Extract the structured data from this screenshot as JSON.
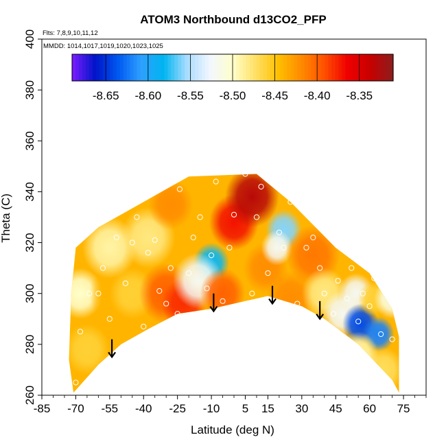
{
  "chart_data": {
    "type": "heatmap",
    "title": "ATOM3 Northbound d13CO2_PFP",
    "annotations": {
      "flights": "Flts: 7,8,9,10,11,12",
      "dates": "MMDD: 1014,1017,1019,1020,1023,1025"
    },
    "xlabel": "Latitude (deg N)",
    "ylabel": "Theta (C)",
    "xlim": [
      -85,
      85
    ],
    "ylim": [
      260,
      400
    ],
    "x_tick_labels": [
      "-85",
      "-70",
      "-55",
      "-40",
      "-25",
      "-10",
      "5",
      "15",
      "30",
      "45",
      "60",
      "75"
    ],
    "x_tick_values": [
      -85,
      -70,
      -55,
      -40,
      -25,
      -10,
      5,
      15,
      30,
      45,
      60,
      75
    ],
    "y_tick_labels": [
      "260",
      "280",
      "300",
      "320",
      "340",
      "360",
      "380",
      "400"
    ],
    "y_tick_values": [
      260,
      280,
      300,
      320,
      340,
      360,
      380,
      400
    ],
    "colorbar": {
      "range": [
        -8.69,
        -8.31
      ],
      "tick_labels": [
        "-8.65",
        "-8.60",
        "-8.55",
        "-8.50",
        "-8.45",
        "-8.40",
        "-8.35"
      ],
      "tick_values": [
        -8.65,
        -8.6,
        -8.55,
        -8.5,
        -8.45,
        -8.4,
        -8.35
      ],
      "colors": [
        "#7d1dff",
        "#0014c8",
        "#0058f0",
        "#2ea0ff",
        "#00b4f0",
        "#a8dcff",
        "#f2f6ff",
        "#ffffcc",
        "#ffe066",
        "#ffc000",
        "#ff8a00",
        "#ff5000",
        "#f00000",
        "#c80000",
        "#8c1e1e"
      ]
    },
    "domain_outline": [
      [
        -73,
        274
      ],
      [
        -72,
        300
      ],
      [
        -70,
        318
      ],
      [
        -60,
        326
      ],
      [
        -48,
        332
      ],
      [
        -30,
        341
      ],
      [
        -20,
        346
      ],
      [
        10,
        347
      ],
      [
        25,
        336
      ],
      [
        45,
        318
      ],
      [
        60,
        308
      ],
      [
        70,
        294
      ],
      [
        73,
        283
      ],
      [
        73,
        261
      ],
      [
        70,
        266
      ],
      [
        55,
        280
      ],
      [
        40,
        290
      ],
      [
        30,
        295
      ],
      [
        15,
        299
      ],
      [
        0,
        296
      ],
      [
        -10,
        294
      ],
      [
        -25,
        292
      ],
      [
        -38,
        286
      ],
      [
        -50,
        280
      ],
      [
        -60,
        272
      ],
      [
        -68,
        264
      ],
      [
        -71,
        261
      ]
    ],
    "blobs": [
      {
        "lat": -68,
        "theta": 300,
        "value": -8.5,
        "radius": 10
      },
      {
        "lat": -65,
        "theta": 278,
        "value": -8.46,
        "radius": 10
      },
      {
        "lat": -52,
        "theta": 300,
        "value": -8.44,
        "radius": 12
      },
      {
        "lat": -45,
        "theta": 300,
        "value": -8.46,
        "radius": 10
      },
      {
        "lat": -55,
        "theta": 318,
        "value": -8.49,
        "radius": 12
      },
      {
        "lat": -38,
        "theta": 322,
        "value": -8.48,
        "radius": 12
      },
      {
        "lat": -30,
        "theta": 300,
        "value": -8.4,
        "radius": 12
      },
      {
        "lat": -22,
        "theta": 296,
        "value": -8.38,
        "radius": 10
      },
      {
        "lat": -28,
        "theta": 335,
        "value": -8.42,
        "radius": 10
      },
      {
        "lat": -10,
        "theta": 312,
        "value": -8.58,
        "radius": 8
      },
      {
        "lat": -16,
        "theta": 305,
        "value": -8.52,
        "radius": 11
      },
      {
        "lat": -5,
        "theta": 300,
        "value": -8.4,
        "radius": 10
      },
      {
        "lat": 0,
        "theta": 328,
        "value": -8.37,
        "radius": 11
      },
      {
        "lat": 8,
        "theta": 338,
        "value": -8.33,
        "radius": 12
      },
      {
        "lat": 14,
        "theta": 310,
        "value": -8.42,
        "radius": 10
      },
      {
        "lat": 22,
        "theta": 325,
        "value": -8.56,
        "radius": 8
      },
      {
        "lat": 19,
        "theta": 318,
        "value": -8.52,
        "radius": 7
      },
      {
        "lat": 25,
        "theta": 298,
        "value": -8.42,
        "radius": 11
      },
      {
        "lat": 35,
        "theta": 315,
        "value": -8.41,
        "radius": 12
      },
      {
        "lat": 40,
        "theta": 300,
        "value": -8.48,
        "radius": 10
      },
      {
        "lat": 48,
        "theta": 292,
        "value": -8.52,
        "radius": 9
      },
      {
        "lat": 54,
        "theta": 300,
        "value": -8.52,
        "radius": 8
      },
      {
        "lat": 56,
        "theta": 288,
        "value": -8.64,
        "radius": 8
      },
      {
        "lat": 62,
        "theta": 298,
        "value": -8.46,
        "radius": 7
      },
      {
        "lat": 64,
        "theta": 284,
        "value": -8.62,
        "radius": 7
      },
      {
        "lat": 70,
        "theta": 298,
        "value": -8.51,
        "radius": 8
      },
      {
        "lat": 66,
        "theta": 270,
        "value": -8.47,
        "radius": 9
      },
      {
        "lat": 55,
        "theta": 276,
        "value": -8.49,
        "radius": 9
      }
    ],
    "samples": [
      [
        -70,
        265
      ],
      [
        -68,
        285
      ],
      [
        -64,
        300
      ],
      [
        -58,
        310
      ],
      [
        -52,
        322
      ],
      [
        -48,
        304
      ],
      [
        -45,
        320
      ],
      [
        -43,
        330
      ],
      [
        -40,
        287
      ],
      [
        -38,
        316
      ],
      [
        -35,
        321
      ],
      [
        -30,
        296
      ],
      [
        -28,
        310
      ],
      [
        -25,
        292
      ],
      [
        -24,
        341
      ],
      [
        -20,
        308
      ],
      [
        -18,
        322
      ],
      [
        -15,
        330
      ],
      [
        -12,
        302
      ],
      [
        -10,
        315
      ],
      [
        -8,
        344
      ],
      [
        -5,
        297
      ],
      [
        -2,
        318
      ],
      [
        0,
        331
      ],
      [
        5,
        347
      ],
      [
        8,
        300
      ],
      [
        10,
        330
      ],
      [
        12,
        342
      ],
      [
        15,
        308
      ],
      [
        18,
        297
      ],
      [
        20,
        324
      ],
      [
        22,
        318
      ],
      [
        25,
        336
      ],
      [
        28,
        296
      ],
      [
        32,
        318
      ],
      [
        35,
        322
      ],
      [
        38,
        310
      ],
      [
        40,
        300
      ],
      [
        44,
        292
      ],
      [
        46,
        305
      ],
      [
        50,
        298
      ],
      [
        52,
        310
      ],
      [
        55,
        289
      ],
      [
        57,
        300
      ],
      [
        60,
        295
      ],
      [
        62,
        306
      ],
      [
        65,
        284
      ],
      [
        68,
        300
      ],
      [
        70,
        282
      ],
      [
        -55,
        290
      ],
      [
        -60,
        300
      ],
      [
        -33,
        301
      ]
    ],
    "arrows": [
      {
        "lat": -54,
        "theta": 282,
        "length": 7
      },
      {
        "lat": -9,
        "theta": 300,
        "length": 7
      },
      {
        "lat": 17,
        "theta": 303,
        "length": 7
      },
      {
        "lat": 38,
        "theta": 297,
        "length": 7
      }
    ],
    "grid": false,
    "legend": "colorbar-top"
  }
}
